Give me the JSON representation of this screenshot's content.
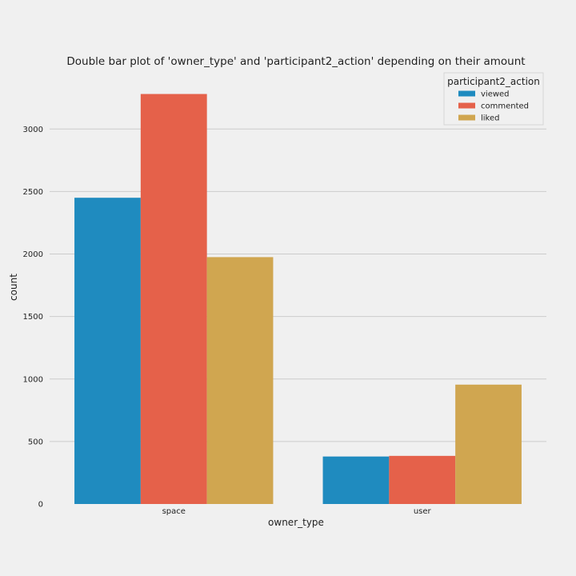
{
  "chart_data": {
    "type": "bar",
    "title": "Double bar plot of 'owner_type' and 'participant2_action' depending on their amount",
    "xlabel": "owner_type",
    "ylabel": "count",
    "categories": [
      "space",
      "user"
    ],
    "series": [
      {
        "name": "viewed",
        "color": "#1f8bbf",
        "values": [
          2450,
          380
        ]
      },
      {
        "name": "commented",
        "color": "#e5614a",
        "values": [
          3280,
          385
        ]
      },
      {
        "name": "liked",
        "color": "#d0a650",
        "values": [
          1975,
          955
        ]
      }
    ],
    "ylim": [
      0,
      3280
    ],
    "yticks": [
      0,
      500,
      1000,
      1500,
      2000,
      2500,
      3000
    ],
    "grid": true,
    "legend": {
      "title": "participant2_action",
      "placement": "top-right"
    }
  }
}
